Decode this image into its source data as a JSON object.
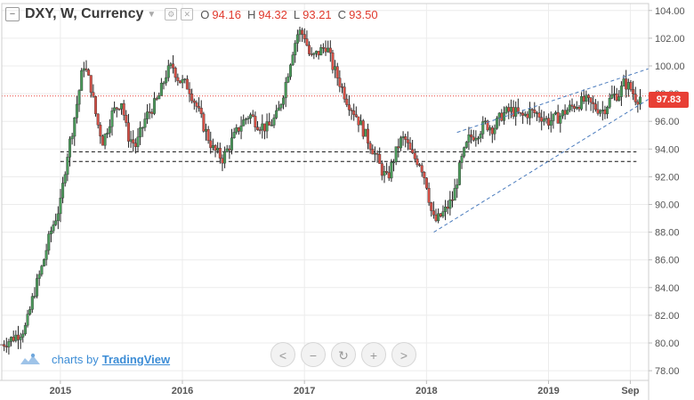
{
  "legend": {
    "title": "DXY, W, Currency",
    "open_label": "O",
    "open": "94.16",
    "high_label": "H",
    "high": "94.32",
    "low_label": "L",
    "low": "93.21",
    "close_label": "C",
    "close": "93.50",
    "menu_icon": "collapse-icon",
    "settings_icon": "settings-icon",
    "close_icon": "close-icon"
  },
  "attribution": {
    "prefix": "charts by",
    "brand": "TradingView"
  },
  "nav": {
    "zoom_out_symbol": "<",
    "minus_symbol": "−",
    "reset_symbol": "↻",
    "plus_symbol": "+",
    "zoom_in_symbol": ">"
  },
  "current_price_label": "97.83",
  "colors": {
    "up": "#4a9a5a",
    "down": "#d64f45",
    "wick": "#222222",
    "price_line": "#e8443a",
    "channel": "#4a7bbd",
    "grid": "#ececec",
    "axis_text": "#555555"
  },
  "chart_data": {
    "type": "candlestick",
    "title": "DXY, W, Currency",
    "interval": "W",
    "x_tick_labels": [
      "2015",
      "2016",
      "2017",
      "2018",
      "2019",
      "Sep"
    ],
    "y_tick_labels": [
      "78.00",
      "80.00",
      "82.00",
      "84.00",
      "86.00",
      "88.00",
      "90.00",
      "92.00",
      "94.00",
      "96.00",
      "98.00",
      "100.00",
      "102.00",
      "104.00"
    ],
    "ylim": [
      77.3,
      104.5
    ],
    "xlim": [
      2014.52,
      2019.82
    ],
    "grid": true,
    "last_price": 97.83,
    "ohlc_header": {
      "open": 94.16,
      "high": 94.32,
      "low": 93.21,
      "close": 93.5
    },
    "horizontal_levels": [
      93.8,
      93.1
    ],
    "channel_lines": [
      {
        "from": [
          2018.06,
          88.0
        ],
        "to": [
          2019.82,
          97.6
        ]
      },
      {
        "from": [
          2018.25,
          95.2
        ],
        "to": [
          2019.82,
          99.8
        ]
      }
    ],
    "price_path": [
      [
        2014.52,
        79.9
      ],
      [
        2014.6,
        80.3
      ],
      [
        2014.68,
        80.8
      ],
      [
        2014.72,
        81.2
      ],
      [
        2014.78,
        83.5
      ],
      [
        2014.85,
        85.5
      ],
      [
        2014.92,
        88.0
      ],
      [
        2015.0,
        90.0
      ],
      [
        2015.05,
        93.3
      ],
      [
        2015.1,
        95.5
      ],
      [
        2015.15,
        98.0
      ],
      [
        2015.19,
        100.2
      ],
      [
        2015.25,
        98.5
      ],
      [
        2015.3,
        96.0
      ],
      [
        2015.35,
        94.5
      ],
      [
        2015.42,
        96.5
      ],
      [
        2015.5,
        97.5
      ],
      [
        2015.55,
        95.0
      ],
      [
        2015.62,
        94.2
      ],
      [
        2015.7,
        96.3
      ],
      [
        2015.8,
        97.6
      ],
      [
        2015.87,
        99.5
      ],
      [
        2015.92,
        100.0
      ],
      [
        2015.97,
        99.0
      ],
      [
        2016.05,
        98.5
      ],
      [
        2016.12,
        97.0
      ],
      [
        2016.18,
        95.5
      ],
      [
        2016.25,
        94.0
      ],
      [
        2016.33,
        93.3
      ],
      [
        2016.4,
        94.5
      ],
      [
        2016.48,
        95.8
      ],
      [
        2016.55,
        96.5
      ],
      [
        2016.62,
        95.8
      ],
      [
        2016.7,
        95.5
      ],
      [
        2016.78,
        96.5
      ],
      [
        2016.84,
        98.5
      ],
      [
        2016.9,
        101.0
      ],
      [
        2016.95,
        102.5
      ],
      [
        2017.0,
        102.2
      ],
      [
        2017.05,
        100.5
      ],
      [
        2017.12,
        101.0
      ],
      [
        2017.18,
        101.5
      ],
      [
        2017.23,
        100.0
      ],
      [
        2017.28,
        99.0
      ],
      [
        2017.35,
        97.5
      ],
      [
        2017.42,
        96.5
      ],
      [
        2017.5,
        95.0
      ],
      [
        2017.57,
        93.8
      ],
      [
        2017.63,
        92.5
      ],
      [
        2017.68,
        91.8
      ],
      [
        2017.72,
        93.0
      ],
      [
        2017.78,
        94.5
      ],
      [
        2017.82,
        94.8
      ],
      [
        2017.88,
        93.5
      ],
      [
        2017.95,
        93.0
      ],
      [
        2018.0,
        91.5
      ],
      [
        2018.05,
        89.0
      ],
      [
        2018.08,
        88.8
      ],
      [
        2018.15,
        89.5
      ],
      [
        2018.22,
        90.5
      ],
      [
        2018.28,
        93.0
      ],
      [
        2018.35,
        94.8
      ],
      [
        2018.42,
        95.2
      ],
      [
        2018.48,
        95.8
      ],
      [
        2018.55,
        95.5
      ],
      [
        2018.62,
        96.5
      ],
      [
        2018.7,
        96.8
      ],
      [
        2018.78,
        96.3
      ],
      [
        2018.85,
        96.7
      ],
      [
        2018.92,
        96.5
      ],
      [
        2019.0,
        96.0
      ],
      [
        2019.08,
        96.3
      ],
      [
        2019.15,
        96.8
      ],
      [
        2019.22,
        97.2
      ],
      [
        2019.3,
        97.5
      ],
      [
        2019.38,
        97.0
      ],
      [
        2019.45,
        96.8
      ],
      [
        2019.52,
        97.8
      ],
      [
        2019.58,
        98.0
      ],
      [
        2019.62,
        98.8
      ],
      [
        2019.67,
        98.4
      ],
      [
        2019.72,
        97.6
      ],
      [
        2019.76,
        97.83
      ]
    ]
  }
}
